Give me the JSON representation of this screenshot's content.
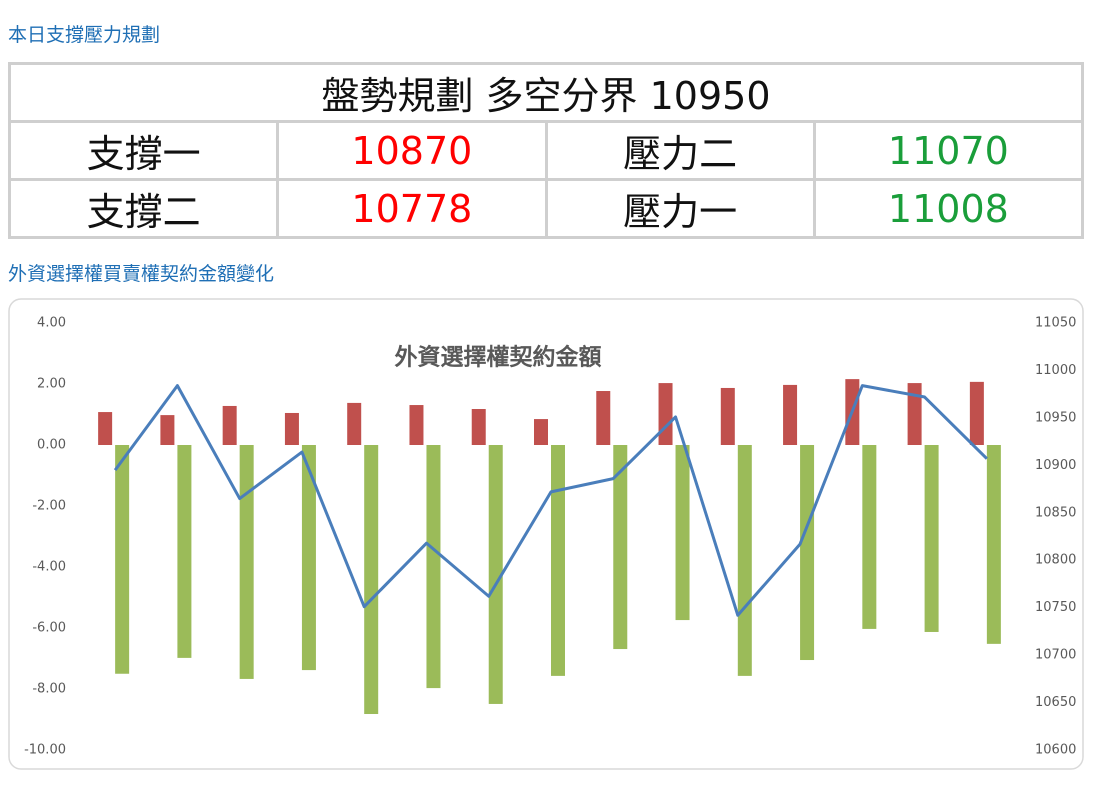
{
  "header": {
    "title": "本日支撐壓力規劃"
  },
  "table": {
    "title": "盤勢規劃 多空分界 10950",
    "rows": [
      [
        "支撐一",
        "10870",
        "壓力二",
        "11070"
      ],
      [
        "支撐二",
        "10778",
        "壓力一",
        "11008"
      ]
    ]
  },
  "section": {
    "title": "外資選擇權買賣權契約金額變化"
  },
  "chart_data": {
    "type": "bar",
    "title": "外資選擇權契約金額",
    "categories": [
      null,
      null,
      null,
      null,
      null,
      null,
      null,
      null,
      null,
      null,
      null,
      null,
      null,
      null,
      null
    ],
    "series": [
      {
        "color": "#c0504d",
        "values": [
          1.08,
          0.98,
          1.28,
          1.05,
          1.38,
          1.31,
          1.18,
          0.85,
          1.77,
          2.03,
          1.87,
          1.97,
          2.16,
          2.03,
          2.07
        ]
      },
      {
        "color": "#9bbb59",
        "values": [
          -7.5,
          -6.98,
          -7.67,
          -7.38,
          -8.82,
          -7.97,
          -8.49,
          -7.57,
          -6.69,
          -5.74,
          -7.57,
          -7.05,
          -6.03,
          -6.13,
          -6.52
        ]
      },
      {
        "type": "line",
        "axis": "y2",
        "color": "#4a7ebb",
        "values": [
          10895,
          10984,
          10865,
          10914,
          10751,
          10818,
          10762,
          10872,
          10886,
          10951,
          10742,
          10817,
          10984,
          10972,
          10907
        ]
      }
    ],
    "ylim": [
      -10,
      4
    ],
    "yticks": [
      {
        "value": 4,
        "label": "4.00"
      },
      {
        "value": 2,
        "label": "2.00"
      },
      {
        "value": 0,
        "label": "0.00"
      },
      {
        "value": -2,
        "label": "-2.00"
      },
      {
        "value": -4,
        "label": "-4.00"
      },
      {
        "value": -6,
        "label": "-6.00"
      },
      {
        "value": -8,
        "label": "-8.00"
      },
      {
        "value": -10,
        "label": "-10.00"
      }
    ],
    "y2lim": [
      10600,
      11050
    ],
    "y2ticks": [
      11050,
      11000,
      10950,
      10900,
      10850,
      10800,
      10750,
      10700,
      10650,
      10600
    ]
  }
}
